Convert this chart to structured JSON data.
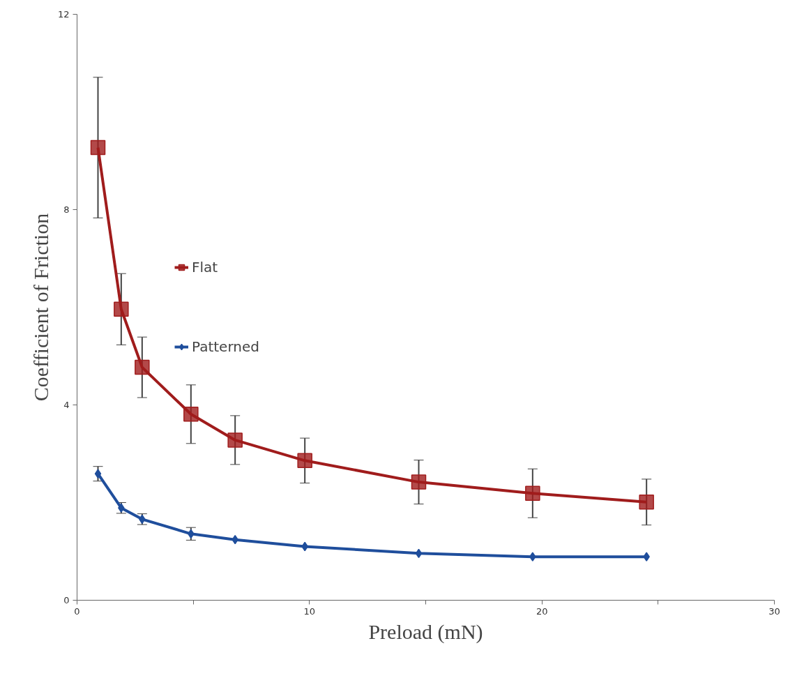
{
  "chart_data": {
    "type": "line",
    "xlabel": "Preload (mN)",
    "ylabel": "Coefficient of Friction",
    "xlim": [
      0,
      30
    ],
    "ylim": [
      0,
      12
    ],
    "xticks": [
      0,
      {
        "value": 5,
        "label": null
      },
      10,
      {
        "value": 15,
        "label": null
      },
      20,
      {
        "value": 25,
        "label": null
      },
      30
    ],
    "yticks": [
      0,
      4,
      8,
      12
    ],
    "grid": false,
    "legend": "left",
    "line_style": "solid",
    "series": [
      {
        "name": "Flat",
        "color": "#a01c1c",
        "marker": "square",
        "x": [
          0.9,
          1.9,
          2.8,
          4.9,
          6.8,
          9.8,
          14.7,
          19.6,
          24.5
        ],
        "values": [
          9.27,
          5.96,
          4.77,
          3.81,
          3.28,
          2.86,
          2.42,
          2.19,
          2.01
        ],
        "errors": [
          1.44,
          0.73,
          0.62,
          0.6,
          0.5,
          0.46,
          0.45,
          0.5,
          0.47
        ]
      },
      {
        "name": "Patterned",
        "color": "#1f4e9c",
        "marker": "diamond",
        "x": [
          0.9,
          1.9,
          2.8,
          4.9,
          6.8,
          9.8,
          14.7,
          19.6,
          24.5
        ],
        "values": [
          2.59,
          1.89,
          1.66,
          1.36,
          1.24,
          1.1,
          0.96,
          0.89,
          0.89
        ],
        "errors": [
          0.15,
          0.11,
          0.11,
          0.13,
          null,
          null,
          null,
          null,
          null
        ]
      }
    ]
  }
}
